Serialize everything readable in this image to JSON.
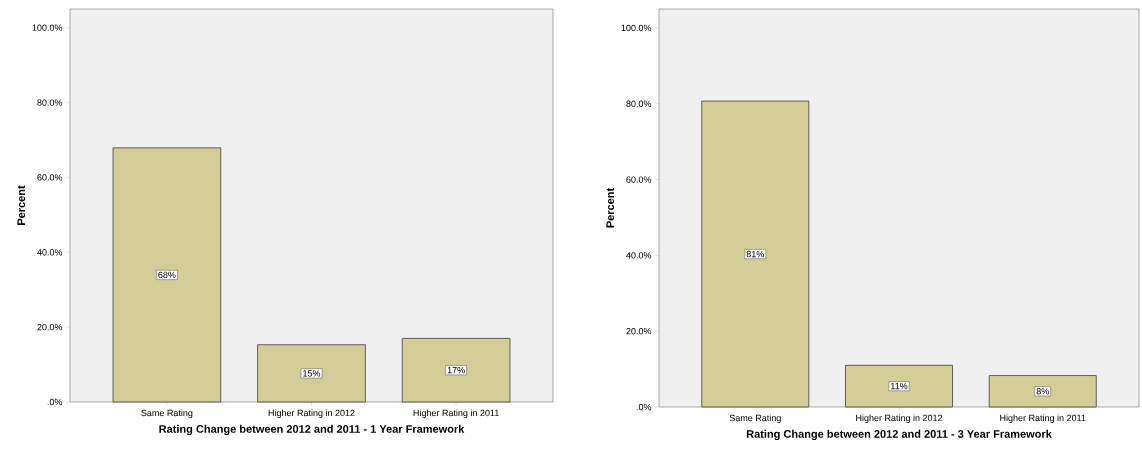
{
  "chart_data": [
    {
      "type": "bar",
      "xlabel": "Rating Change between 2012 and 2011 - 1 Year Framework",
      "ylabel": "Percent",
      "categories": [
        "Same Rating",
        "Higher Rating in 2012",
        "Higher Rating in 2011"
      ],
      "values": [
        67.9,
        15.3,
        17.0
      ],
      "value_labels": [
        "68%",
        "15%",
        "17%"
      ],
      "color": "#d3ce97",
      "ylim": [
        0,
        105
      ],
      "yticks": [
        {
          "value": 0,
          "label": ".0%"
        },
        {
          "value": 20,
          "label": "20.0%"
        },
        {
          "value": 40,
          "label": "40.0%"
        },
        {
          "value": 60,
          "label": "60.0%"
        },
        {
          "value": 80,
          "label": "80.0%"
        },
        {
          "value": 100,
          "label": "100.0%"
        }
      ]
    },
    {
      "type": "bar",
      "xlabel": "Rating Change between 2012 and 2011 - 3 Year Framework",
      "ylabel": "Percent",
      "categories": [
        "Same Rating",
        "Higher Rating in 2012",
        "Higher Rating in 2011"
      ],
      "values": [
        80.7,
        11.0,
        8.3
      ],
      "value_labels": [
        "81%",
        "11%",
        "8%"
      ],
      "color": "#d3ce97",
      "ylim": [
        0,
        105
      ],
      "yticks": [
        {
          "value": 0,
          "label": ".0%"
        },
        {
          "value": 20,
          "label": "20.0%"
        },
        {
          "value": 40,
          "label": "40.0%"
        },
        {
          "value": 60,
          "label": "60.0%"
        },
        {
          "value": 80,
          "label": "80.0%"
        },
        {
          "value": 100,
          "label": "100.0%"
        }
      ]
    }
  ]
}
